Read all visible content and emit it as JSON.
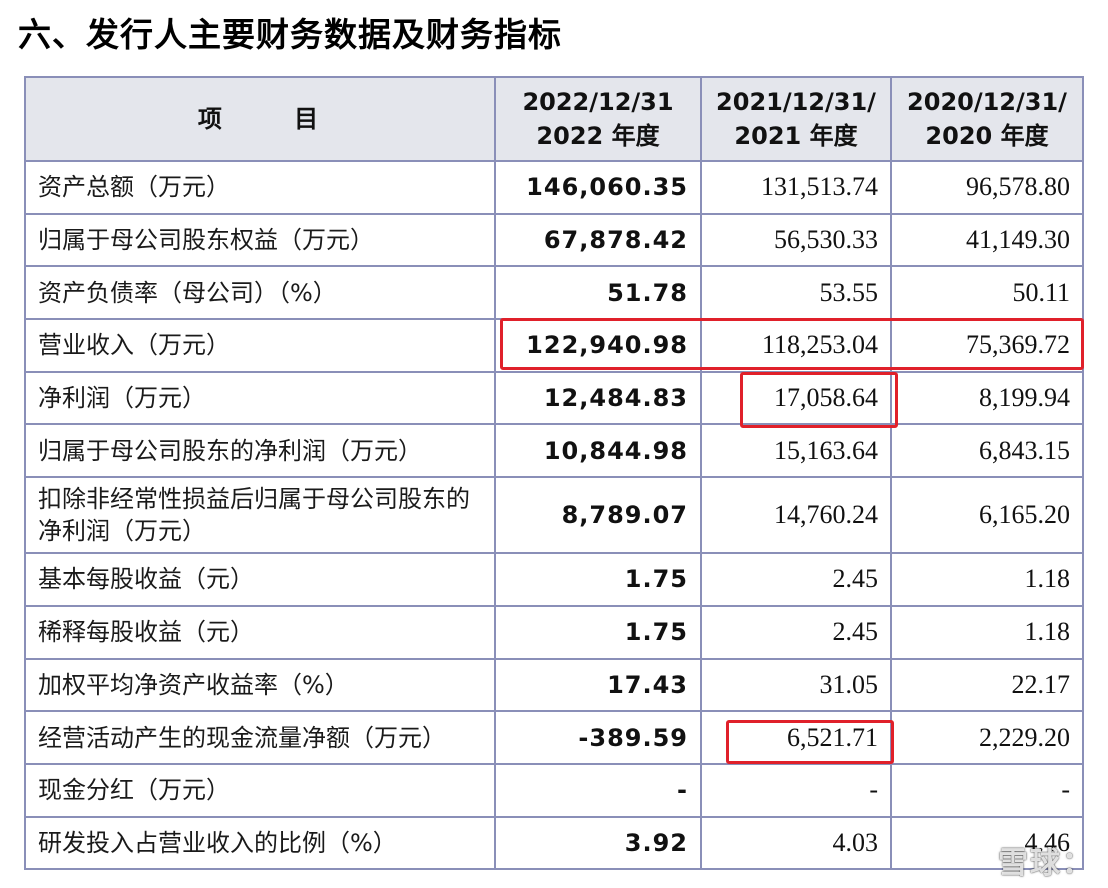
{
  "title": "六、发行人主要财务数据及财务指标",
  "table": {
    "headers": [
      "项 目",
      "2022/12/31\n2022 年度",
      "2021/12/31/\n2021 年度",
      "2020/12/31/\n2020 年度"
    ],
    "rows": [
      [
        "资产总额（万元）",
        "146,060.35",
        "131,513.74",
        "96,578.80"
      ],
      [
        "归属于母公司股东权益（万元）",
        "67,878.42",
        "56,530.33",
        "41,149.30"
      ],
      [
        "资产负债率（母公司）（%）",
        "51.78",
        "53.55",
        "50.11"
      ],
      [
        "营业收入（万元）",
        "122,940.98",
        "118,253.04",
        "75,369.72"
      ],
      [
        "净利润（万元）",
        "12,484.83",
        "17,058.64",
        "8,199.94"
      ],
      [
        "归属于母公司股东的净利润（万元）",
        "10,844.98",
        "15,163.64",
        "6,843.15"
      ],
      [
        "扣除非经常性损益后归属于母公司股东的净利润（万元）",
        "8,789.07",
        "14,760.24",
        "6,165.20"
      ],
      [
        "基本每股收益（元）",
        "1.75",
        "2.45",
        "1.18"
      ],
      [
        "稀释每股收益（元）",
        "1.75",
        "2.45",
        "1.18"
      ],
      [
        "加权平均净资产收益率（%）",
        "17.43",
        "31.05",
        "22.17"
      ],
      [
        "经营活动产生的现金流量净额（万元）",
        "-389.59",
        "6,521.71",
        "2,229.20"
      ],
      [
        "现金分红（万元）",
        "-",
        "-",
        "-"
      ],
      [
        "研发投入占营业收入的比例（%）",
        "3.92",
        "4.03",
        "4.46"
      ]
    ]
  },
  "watermark": "雪球：",
  "colors": {
    "header_bg": "#e4e6ec",
    "border": "#8a8fb8",
    "highlight": "#e0202a"
  }
}
